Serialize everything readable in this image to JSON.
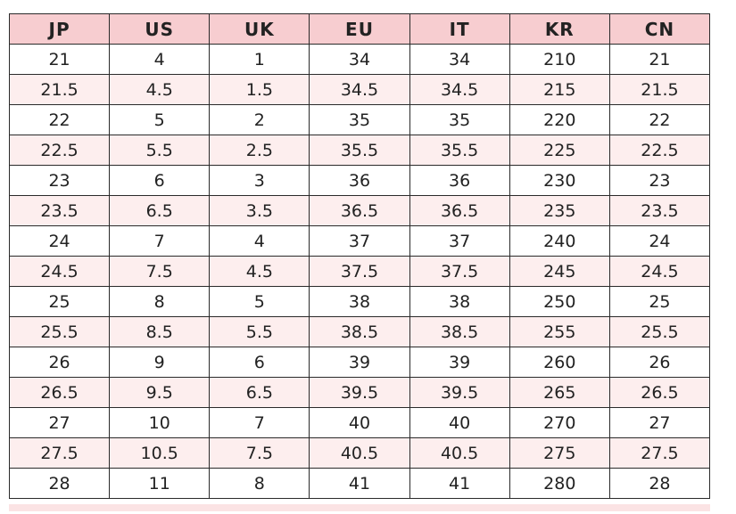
{
  "table": {
    "headers": [
      "JP",
      "US",
      "UK",
      "EU",
      "IT",
      "KR",
      "CN"
    ],
    "rows": [
      [
        "21",
        "4",
        "1",
        "34",
        "34",
        "210",
        "21"
      ],
      [
        "21.5",
        "4.5",
        "1.5",
        "34.5",
        "34.5",
        "215",
        "21.5"
      ],
      [
        "22",
        "5",
        "2",
        "35",
        "35",
        "220",
        "22"
      ],
      [
        "22.5",
        "5.5",
        "2.5",
        "35.5",
        "35.5",
        "225",
        "22.5"
      ],
      [
        "23",
        "6",
        "3",
        "36",
        "36",
        "230",
        "23"
      ],
      [
        "23.5",
        "6.5",
        "3.5",
        "36.5",
        "36.5",
        "235",
        "23.5"
      ],
      [
        "24",
        "7",
        "4",
        "37",
        "37",
        "240",
        "24"
      ],
      [
        "24.5",
        "7.5",
        "4.5",
        "37.5",
        "37.5",
        "245",
        "24.5"
      ],
      [
        "25",
        "8",
        "5",
        "38",
        "38",
        "250",
        "25"
      ],
      [
        "25.5",
        "8.5",
        "5.5",
        "38.5",
        "38.5",
        "255",
        "25.5"
      ],
      [
        "26",
        "9",
        "6",
        "39",
        "39",
        "260",
        "26"
      ],
      [
        "26.5",
        "9.5",
        "6.5",
        "39.5",
        "39.5",
        "265",
        "26.5"
      ],
      [
        "27",
        "10",
        "7",
        "40",
        "40",
        "270",
        "27"
      ],
      [
        "27.5",
        "10.5",
        "7.5",
        "40.5",
        "40.5",
        "275",
        "27.5"
      ],
      [
        "28",
        "11",
        "8",
        "41",
        "41",
        "280",
        "28"
      ]
    ]
  },
  "colors": {
    "header_bg": "#f7cdd0",
    "alt_row_bg": "#fdeeee",
    "border": "#222222"
  }
}
